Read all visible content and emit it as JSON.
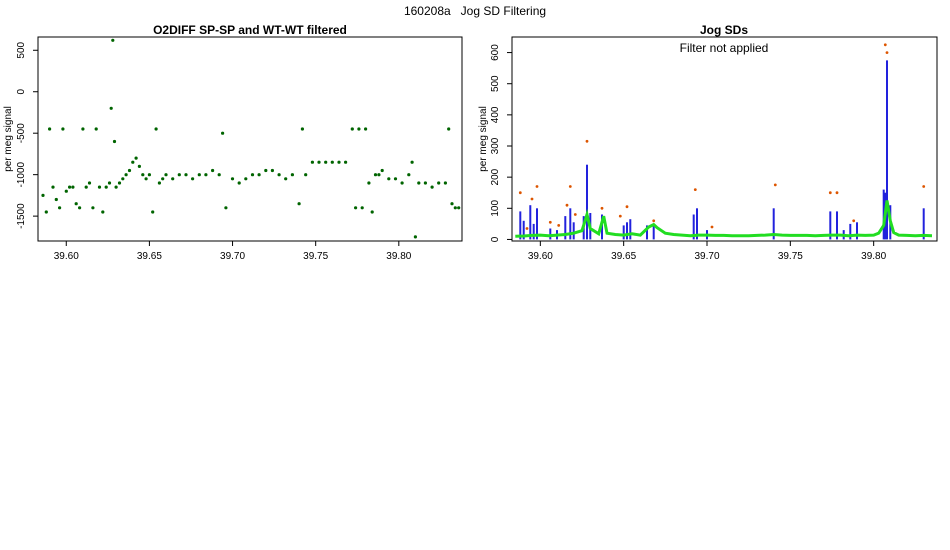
{
  "figure": {
    "suptitle": "160208a   Jog SD Filtering"
  },
  "chart_data": [
    {
      "type": "scatter",
      "title": "O2DIFF SP-SP and WT-WT filtered",
      "xlabel": "",
      "ylabel": "per meg signal",
      "xlim": [
        39.583,
        39.838
      ],
      "ylim": [
        -1800,
        660
      ],
      "x_ticks": [
        39.6,
        39.65,
        39.7,
        39.75,
        39.8
      ],
      "x_tick_labels": [
        "39.60",
        "39.65",
        "39.70",
        "39.75",
        "39.80"
      ],
      "y_ticks": [
        -1500,
        -1000,
        -500,
        0,
        500
      ],
      "y_tick_labels": [
        "-1500",
        "-1000",
        "-500",
        "0",
        "500"
      ],
      "grid": false,
      "colors": {
        "points": "#006400",
        "highlight": "#cc5500"
      },
      "series": [
        {
          "style": "points",
          "x": [
            39.586,
            39.588,
            39.59,
            39.592,
            39.594,
            39.596,
            39.598,
            39.6,
            39.602,
            39.604,
            39.606,
            39.608,
            39.61,
            39.612,
            39.614,
            39.616,
            39.618,
            39.62,
            39.622,
            39.624,
            39.626,
            39.627,
            39.628,
            39.629,
            39.63,
            39.632,
            39.634,
            39.636,
            39.638,
            39.64,
            39.642,
            39.644,
            39.646,
            39.648,
            39.65,
            39.652,
            39.654,
            39.656,
            39.658,
            39.66,
            39.664,
            39.668,
            39.672,
            39.676,
            39.68,
            39.684,
            39.688,
            39.692,
            39.694,
            39.696,
            39.7,
            39.704,
            39.708,
            39.712,
            39.716,
            39.72,
            39.724,
            39.728,
            39.732,
            39.736,
            39.74,
            39.742,
            39.744,
            39.748,
            39.752,
            39.756,
            39.76,
            39.764,
            39.768,
            39.772,
            39.774,
            39.776,
            39.778,
            39.78,
            39.782,
            39.784,
            39.786,
            39.788,
            39.79,
            39.794,
            39.798,
            39.802,
            39.806,
            39.808,
            39.81,
            39.812,
            39.816,
            39.82,
            39.824,
            39.828,
            39.83,
            39.832,
            39.834,
            39.836
          ],
          "y": [
            -1250,
            -1450,
            -450,
            -1150,
            -1300,
            -1400,
            -450,
            -1200,
            -1150,
            -1150,
            -1350,
            -1400,
            -450,
            -1150,
            -1100,
            -1400,
            -450,
            -1150,
            -1450,
            -1150,
            -1100,
            -200,
            620,
            -600,
            -1150,
            -1100,
            -1050,
            -1000,
            -950,
            -850,
            -800,
            -900,
            -1000,
            -1050,
            -1000,
            -1450,
            -450,
            -1100,
            -1050,
            -1000,
            -1050,
            -1000,
            -1000,
            -1050,
            -1000,
            -1000,
            -950,
            -1000,
            -500,
            -1400,
            -1050,
            -1100,
            -1050,
            -1000,
            -1000,
            -950,
            -950,
            -1000,
            -1050,
            -1000,
            -1350,
            -450,
            -1000,
            -850,
            -850,
            -850,
            -850,
            -850,
            -850,
            -450,
            -1400,
            -450,
            -1400,
            -450,
            -1100,
            -1450,
            -1000,
            -1000,
            -950,
            -1050,
            -1050,
            -1100,
            -1000,
            -850,
            -1750,
            -1100,
            -1100,
            -1150,
            -1100,
            -1100,
            -450,
            -1350,
            -1400,
            -1400
          ]
        }
      ]
    },
    {
      "type": "line",
      "title": "Jog SDs",
      "annotation": "Filter not applied",
      "xlabel": "",
      "ylabel": "per meg signal",
      "xlim": [
        39.583,
        39.838
      ],
      "ylim": [
        -5,
        650
      ],
      "x_ticks": [
        39.6,
        39.65,
        39.7,
        39.75,
        39.8
      ],
      "x_tick_labels": [
        "39.60",
        "39.65",
        "39.70",
        "39.75",
        "39.80"
      ],
      "y_ticks": [
        0,
        100,
        200,
        300,
        400,
        500,
        600
      ],
      "y_tick_labels": [
        "0",
        "100",
        "200",
        "300",
        "400",
        "500",
        "600"
      ],
      "grid": false,
      "colors": {
        "blue": "#2222dd",
        "green": "#22dd22",
        "dark": "#222222",
        "orange": "#dd5500"
      },
      "series": [
        {
          "style": "spikes",
          "color": "blue",
          "x": [
            39.588,
            39.59,
            39.594,
            39.596,
            39.598,
            39.606,
            39.61,
            39.615,
            39.618,
            39.62,
            39.626,
            39.628,
            39.63,
            39.637,
            39.65,
            39.652,
            39.654,
            39.664,
            39.668,
            39.692,
            39.694,
            39.7,
            39.74,
            39.774,
            39.778,
            39.782,
            39.786,
            39.79,
            39.806,
            39.807,
            39.808,
            39.81,
            39.83
          ],
          "y": [
            90,
            60,
            110,
            50,
            100,
            35,
            30,
            75,
            100,
            55,
            75,
            240,
            85,
            80,
            45,
            55,
            65,
            45,
            50,
            80,
            100,
            30,
            100,
            90,
            90,
            30,
            50,
            55,
            160,
            150,
            575,
            110,
            100
          ]
        },
        {
          "style": "line",
          "color": "green",
          "x": [
            39.585,
            39.59,
            39.595,
            39.6,
            39.605,
            39.61,
            39.615,
            39.62,
            39.625,
            39.628,
            39.63,
            39.635,
            39.638,
            39.64,
            39.645,
            39.65,
            39.655,
            39.66,
            39.665,
            39.668,
            39.67,
            39.675,
            39.68,
            39.685,
            39.69,
            39.695,
            39.7,
            39.705,
            39.71,
            39.715,
            39.72,
            39.725,
            39.73,
            39.735,
            39.74,
            39.745,
            39.75,
            39.755,
            39.76,
            39.765,
            39.77,
            39.775,
            39.78,
            39.785,
            39.79,
            39.795,
            39.8,
            39.803,
            39.806,
            39.808,
            39.81,
            39.812,
            39.815,
            39.82,
            39.825,
            39.83,
            39.835
          ],
          "y": [
            10,
            11,
            13,
            14,
            12,
            14,
            16,
            20,
            28,
            80,
            35,
            18,
            75,
            20,
            16,
            14,
            18,
            14,
            40,
            48,
            38,
            20,
            16,
            14,
            12,
            14,
            14,
            13,
            13,
            12,
            12,
            12,
            13,
            14,
            16,
            14,
            13,
            13,
            13,
            12,
            13,
            14,
            14,
            12,
            14,
            13,
            14,
            20,
            45,
            125,
            60,
            22,
            14,
            13,
            12,
            13,
            12
          ]
        },
        {
          "style": "points",
          "color": "orange",
          "x": [
            39.588,
            39.592,
            39.595,
            39.598,
            39.606,
            39.611,
            39.616,
            39.618,
            39.621,
            39.628,
            39.637,
            39.648,
            39.652,
            39.668,
            39.693,
            39.703,
            39.741,
            39.774,
            39.778,
            39.788,
            39.807,
            39.808,
            39.83
          ],
          "y": [
            150,
            35,
            130,
            170,
            55,
            45,
            110,
            170,
            80,
            315,
            100,
            75,
            105,
            60,
            160,
            40,
            175,
            150,
            150,
            60,
            625,
            600,
            170
          ]
        }
      ]
    }
  ]
}
